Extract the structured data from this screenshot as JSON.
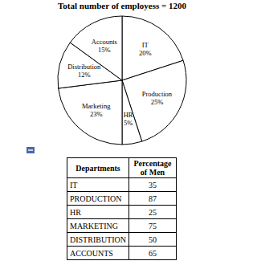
{
  "chart_data": {
    "type": "pie",
    "title": "Total number of employess = 1200",
    "categories": [
      "IT",
      "Production",
      "HR",
      "Marketing",
      "Distribution",
      "Accounts"
    ],
    "values": [
      20,
      25,
      5,
      23,
      12,
      15
    ],
    "value_labels": [
      "20%",
      "25%",
      "5%",
      "23%",
      "12%",
      "15%"
    ],
    "data_labels": true,
    "color": "#ffffff"
  },
  "table": {
    "header": [
      "Departments",
      "Percentage of Men"
    ],
    "rows": [
      [
        "IT",
        35
      ],
      [
        "PRODUCTION",
        87
      ],
      [
        "HR",
        25
      ],
      [
        "MARKETING",
        75
      ],
      [
        "DISTRIBUTION",
        50
      ],
      [
        "ACCOUNTS",
        65
      ]
    ]
  }
}
